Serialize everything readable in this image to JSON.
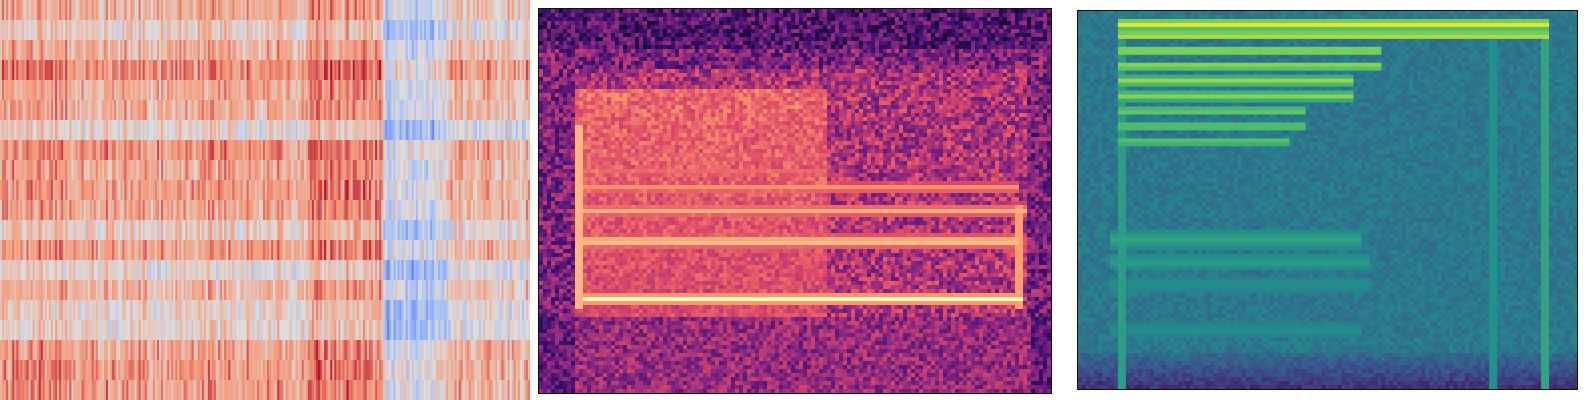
{
  "chart_data": [
    {
      "type": "heatmap",
      "colormap": "coolwarm",
      "colors": {
        "low": "#3b4cc0",
        "mid": "#dddddd",
        "high": "#b40426"
      },
      "grid": false,
      "rows": 20,
      "columns": 260,
      "description_bands": [
        {
          "x_range": [
            0.0,
            0.14
          ],
          "level": 0.66
        },
        {
          "x_range": [
            0.14,
            0.34
          ],
          "level": 0.62
        },
        {
          "x_range": [
            0.34,
            0.58
          ],
          "level": 0.64
        },
        {
          "x_range": [
            0.58,
            0.72
          ],
          "level": 0.7
        },
        {
          "x_range": [
            0.72,
            0.84
          ],
          "level": 0.4
        },
        {
          "x_range": [
            0.84,
            1.0
          ],
          "level": 0.58
        }
      ]
    },
    {
      "type": "heatmap",
      "colormap": "magma",
      "colors": {
        "low": "#000004",
        "mid": "#b73779",
        "high": "#fcfdbf"
      },
      "grid": false,
      "background_level": 0.36,
      "harmonics": [
        {
          "y": 0.75,
          "x_range": [
            0.08,
            0.94
          ],
          "level": 1.0
        },
        {
          "y": 0.6,
          "x_range": [
            0.08,
            0.93
          ],
          "level": 0.95
        },
        {
          "y": 0.52,
          "x_range": [
            0.08,
            0.95
          ],
          "level": 0.85
        },
        {
          "y": 0.46,
          "x_range": [
            0.08,
            0.93
          ],
          "level": 0.8
        },
        {
          "y": 0.42,
          "x_range": [
            0.08,
            0.56
          ],
          "level": 0.72
        },
        {
          "y": 0.38,
          "x_range": [
            0.08,
            0.56
          ],
          "level": 0.7
        }
      ],
      "energy_region": {
        "x_range": [
          0.07,
          0.56
        ],
        "y_range": [
          0.2,
          0.8
        ],
        "level": 0.6
      }
    },
    {
      "type": "heatmap",
      "colormap": "viridis",
      "colors": {
        "low": "#440154",
        "mid": "#21918c",
        "high": "#fde725"
      },
      "grid": false,
      "background_level": 0.4,
      "harmonics": [
        {
          "y": 0.03,
          "x_range": [
            0.08,
            0.94
          ],
          "level": 1.0
        },
        {
          "y": 0.06,
          "x_range": [
            0.08,
            0.94
          ],
          "level": 0.95
        },
        {
          "y": 0.1,
          "x_range": [
            0.08,
            0.6
          ],
          "level": 0.9
        },
        {
          "y": 0.14,
          "x_range": [
            0.08,
            0.6
          ],
          "level": 0.88
        },
        {
          "y": 0.18,
          "x_range": [
            0.08,
            0.55
          ],
          "level": 0.86
        },
        {
          "y": 0.22,
          "x_range": [
            0.08,
            0.55
          ],
          "level": 0.84
        },
        {
          "y": 0.26,
          "x_range": [
            0.08,
            0.45
          ],
          "level": 0.8
        },
        {
          "y": 0.3,
          "x_range": [
            0.08,
            0.45
          ],
          "level": 0.78
        },
        {
          "y": 0.34,
          "x_range": [
            0.08,
            0.42
          ],
          "level": 0.76
        }
      ],
      "low_bands": [
        {
          "y": 0.6,
          "x_range": [
            0.06,
            0.56
          ],
          "level": 0.58
        },
        {
          "y": 0.66,
          "x_range": [
            0.06,
            0.58
          ],
          "level": 0.55
        },
        {
          "y": 0.72,
          "x_range": [
            0.06,
            0.58
          ],
          "level": 0.5
        },
        {
          "y": 0.84,
          "x_range": [
            0.06,
            0.56
          ],
          "level": 0.5
        }
      ],
      "vertical_lines": [
        {
          "x": 0.08,
          "level": 0.55
        },
        {
          "x": 0.83,
          "level": 0.5
        },
        {
          "x": 0.93,
          "level": 0.58
        }
      ]
    }
  ]
}
